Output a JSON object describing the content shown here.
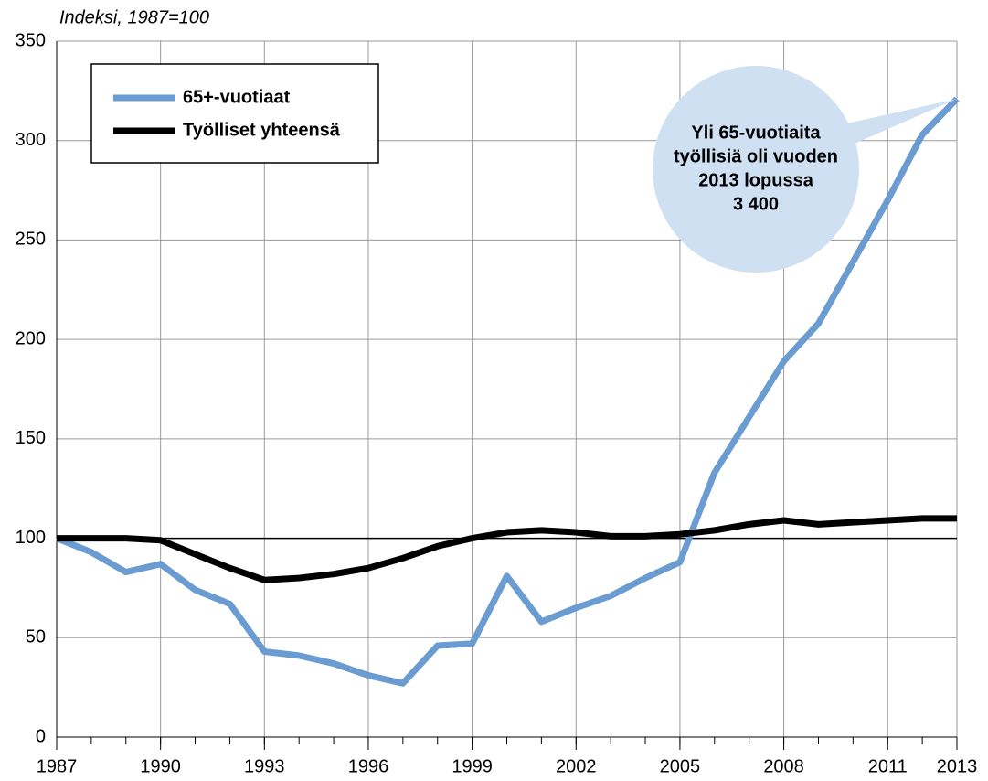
{
  "chart_data": {
    "type": "line",
    "ylabel": "Indeksi, 1987=100",
    "x": [
      1987,
      1988,
      1989,
      1990,
      1991,
      1992,
      1993,
      1994,
      1995,
      1996,
      1997,
      1998,
      1999,
      2000,
      2001,
      2002,
      2003,
      2004,
      2005,
      2006,
      2007,
      2008,
      2009,
      2010,
      2011,
      2012,
      2013
    ],
    "series": [
      {
        "name": "65+-vuotiaat",
        "color": "#6a9bd1",
        "values": [
          100,
          93,
          83,
          87,
          74,
          67,
          43,
          41,
          37,
          31,
          27,
          46,
          47,
          81,
          58,
          65,
          71,
          80,
          88,
          133,
          161,
          189,
          208,
          239,
          270,
          303,
          321
        ]
      },
      {
        "name": "Työlliset yhteensä",
        "color": "#000000",
        "values": [
          100,
          100,
          100,
          99,
          92,
          85,
          79,
          80,
          82,
          85,
          90,
          96,
          100,
          103,
          104,
          103,
          101,
          101,
          102,
          104,
          107,
          109,
          107,
          108,
          109,
          110,
          110
        ]
      }
    ],
    "xlim": [
      1987,
      2013
    ],
    "xticks": [
      1987,
      1990,
      1993,
      1996,
      1999,
      2002,
      2005,
      2008,
      2011,
      2013
    ],
    "ylim": [
      0,
      350
    ],
    "yticks": [
      0,
      50,
      100,
      150,
      200,
      250,
      300,
      350
    ],
    "reference_line": 100,
    "grid": true,
    "legend": "upper left",
    "annotation": [
      "Yli 65-vuotiaita",
      "työllisiä oli vuoden",
      "2013 lopussa",
      "3 400"
    ]
  }
}
